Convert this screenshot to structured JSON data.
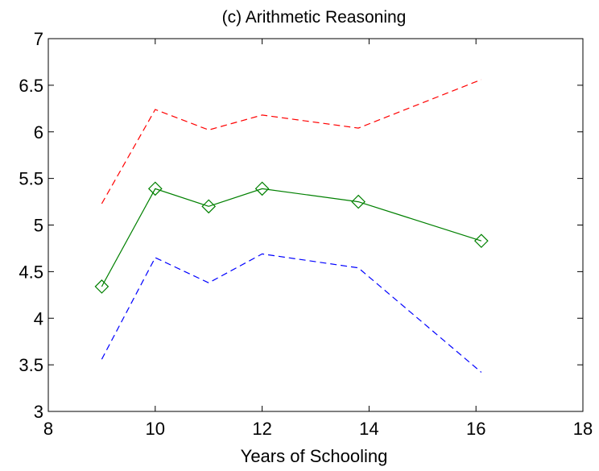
{
  "chart_data": {
    "type": "line",
    "title": "(c) Arithmetic Reasoning",
    "xlabel": "Years of Schooling",
    "ylabel": "",
    "xlim": [
      8,
      18
    ],
    "ylim": [
      3,
      7
    ],
    "xticks": [
      8,
      10,
      12,
      14,
      16,
      18
    ],
    "yticks": [
      3,
      3.5,
      4,
      4.5,
      5,
      5.5,
      6,
      6.5,
      7
    ],
    "grid": false,
    "series": [
      {
        "role": "upper",
        "color": "#ff0000",
        "style": "dashed",
        "marker": "none",
        "x": [
          9,
          10,
          11,
          12,
          13.8,
          16.1
        ],
        "y": [
          5.23,
          6.24,
          6.02,
          6.18,
          6.04,
          6.56
        ]
      },
      {
        "role": "estimate",
        "color": "#008000",
        "style": "solid",
        "marker": "diamond",
        "x": [
          9,
          10,
          11,
          12,
          13.8,
          16.1
        ],
        "y": [
          4.34,
          5.39,
          5.2,
          5.39,
          5.25,
          4.83
        ]
      },
      {
        "role": "lower",
        "color": "#0000ff",
        "style": "dashed",
        "marker": "none",
        "x": [
          9,
          10,
          11,
          12,
          13.8,
          16.1
        ],
        "y": [
          3.56,
          4.65,
          4.38,
          4.69,
          4.54,
          3.42
        ]
      }
    ]
  }
}
